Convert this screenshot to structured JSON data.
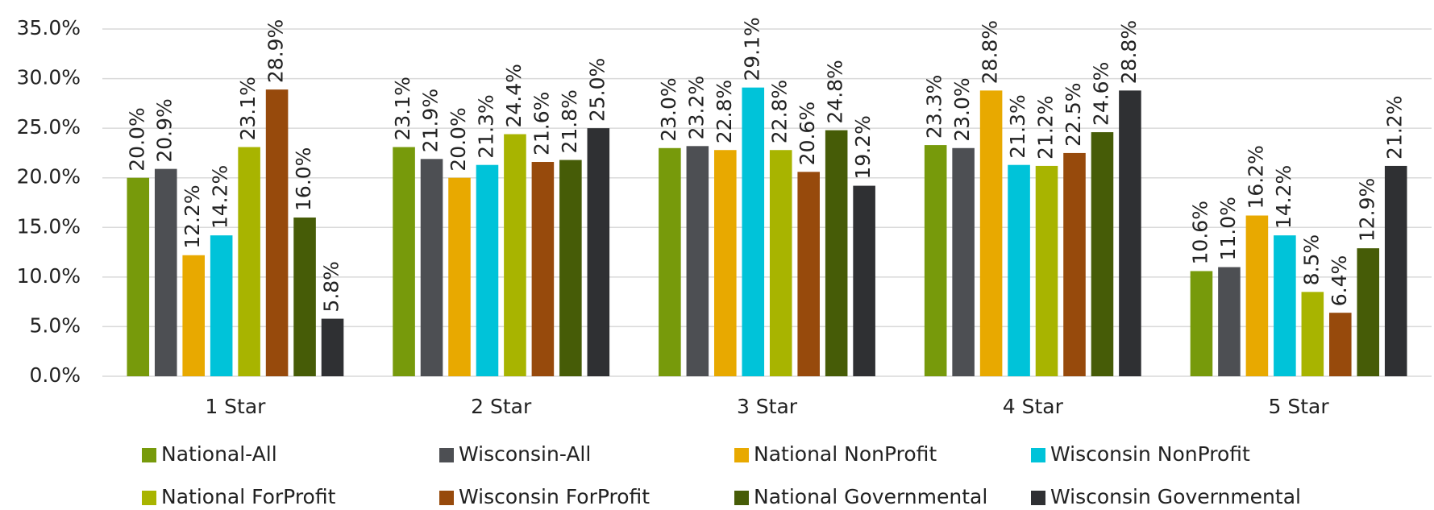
{
  "chart_data": {
    "type": "bar",
    "categories": [
      "1 Star",
      "2 Star",
      "3 Star",
      "4 Star",
      "5 Star"
    ],
    "series": [
      {
        "name": "National-All",
        "color": "#779a0b",
        "values": [
          20.0,
          23.1,
          23.0,
          23.3,
          10.6
        ],
        "value_labels": [
          "20.0%",
          "23.1%",
          "23.0%",
          "23.3%",
          "10.6%"
        ]
      },
      {
        "name": "Wisconsin-All",
        "color": "#4d4f53",
        "values": [
          20.9,
          21.9,
          23.2,
          23.0,
          11.0
        ],
        "value_labels": [
          "20.9%",
          "21.9%",
          "23.2%",
          "23.0%",
          "11.0%"
        ]
      },
      {
        "name": "National NonProfit",
        "color": "#e8a900",
        "values": [
          12.2,
          20.0,
          22.8,
          28.8,
          16.2
        ],
        "value_labels": [
          "12.2%",
          "20.0%",
          "22.8%",
          "28.8%",
          "16.2%"
        ]
      },
      {
        "name": "Wisconsin NonProfit",
        "color": "#00c3d9",
        "values": [
          14.2,
          21.3,
          29.1,
          21.3,
          14.2
        ],
        "value_labels": [
          "14.2%",
          "21.3%",
          "29.1%",
          "21.3%",
          "14.2%"
        ]
      },
      {
        "name": "National ForProfit",
        "color": "#a8b400",
        "values": [
          23.1,
          24.4,
          22.8,
          21.2,
          8.5
        ],
        "value_labels": [
          "23.1%",
          "24.4%",
          "22.8%",
          "21.2%",
          "8.5%"
        ]
      },
      {
        "name": "Wisconsin ForProfit",
        "color": "#974a0c",
        "values": [
          28.9,
          21.6,
          20.6,
          22.5,
          6.4
        ],
        "value_labels": [
          "28.9%",
          "21.6%",
          "20.6%",
          "22.5%",
          "6.4%"
        ]
      },
      {
        "name": "National Governmental",
        "color": "#465c07",
        "values": [
          16.0,
          21.8,
          24.8,
          24.6,
          12.9
        ],
        "value_labels": [
          "16.0%",
          "21.8%",
          "24.8%",
          "24.6%",
          "12.9%"
        ]
      },
      {
        "name": "Wisconsin Governmental",
        "color": "#2f3033",
        "values": [
          5.8,
          25.0,
          19.2,
          28.8,
          21.2
        ],
        "value_labels": [
          "5.8%",
          "25.0%",
          "19.2%",
          "28.8%",
          "21.2%"
        ]
      }
    ],
    "ylim": [
      0,
      35
    ],
    "yticks": [
      {
        "value": 0,
        "label": "0.0%"
      },
      {
        "value": 5,
        "label": "5.0%"
      },
      {
        "value": 10,
        "label": "10.0%"
      },
      {
        "value": 15,
        "label": "15.0%"
      },
      {
        "value": 20,
        "label": "20.0%"
      },
      {
        "value": 25,
        "label": "25.0%"
      },
      {
        "value": 30,
        "label": "30.0%"
      },
      {
        "value": 35,
        "label": "35.0%"
      }
    ],
    "grid": true,
    "legend": "bottom"
  }
}
